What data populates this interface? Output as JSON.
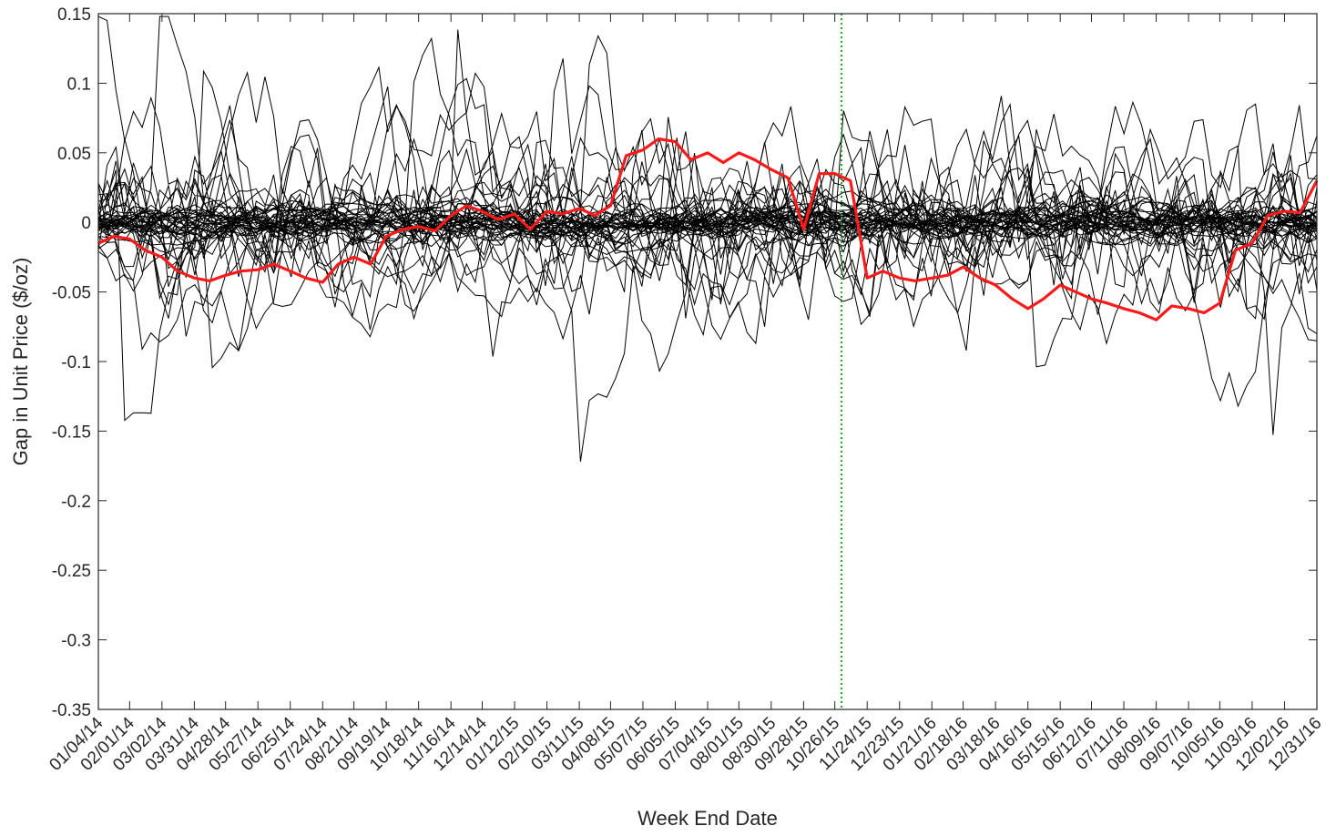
{
  "chart_data": {
    "type": "line",
    "title": "",
    "xlabel": "Week End Date",
    "ylabel": "Gap in Unit Price ($/oz)",
    "ylim": [
      -0.35,
      0.15
    ],
    "yticks": [
      0.15,
      0.1,
      0.05,
      0,
      -0.05,
      -0.1,
      -0.15,
      -0.2,
      -0.25,
      -0.3,
      -0.35
    ],
    "ytick_labels": [
      "0.15",
      "0.1",
      "0.05",
      "0",
      "-0.05",
      "-0.1",
      "-0.15",
      "-0.2",
      "-0.25",
      "-0.3",
      "-0.35"
    ],
    "xtick_labels": [
      "01/04/14",
      "02/01/14",
      "03/02/14",
      "03/31/14",
      "04/28/14",
      "05/27/14",
      "06/25/14",
      "07/24/14",
      "08/21/14",
      "09/19/14",
      "10/18/14",
      "11/16/14",
      "12/14/14",
      "01/12/15",
      "02/10/15",
      "03/11/15",
      "04/08/15",
      "05/07/15",
      "06/05/15",
      "07/04/15",
      "08/01/15",
      "08/30/15",
      "09/28/15",
      "10/26/15",
      "11/24/15",
      "12/23/15",
      "01/21/16",
      "02/18/16",
      "03/18/16",
      "04/16/16",
      "05/15/16",
      "06/12/16",
      "07/11/16",
      "08/09/16",
      "09/07/16",
      "10/05/16",
      "11/03/16",
      "12/02/16",
      "12/31/16"
    ],
    "x_range": [
      "01/04/14",
      "12/31/16"
    ],
    "grid": false,
    "vertical_marker": {
      "date": "11/01/15",
      "color": "#2ca02c",
      "style": "dotted"
    },
    "highlight_series": {
      "color": "#ff1a1a",
      "x": [
        "01/04/14",
        "01/18/14",
        "02/01/14",
        "02/15/14",
        "03/02/14",
        "03/16/14",
        "03/31/14",
        "04/14/14",
        "04/28/14",
        "05/12/14",
        "05/27/14",
        "06/10/14",
        "06/25/14",
        "07/09/14",
        "07/24/14",
        "08/07/14",
        "08/21/14",
        "09/05/14",
        "09/19/14",
        "10/04/14",
        "10/18/14",
        "11/02/14",
        "11/16/14",
        "11/30/14",
        "12/14/14",
        "12/28/14",
        "01/12/15",
        "01/26/15",
        "02/10/15",
        "02/24/15",
        "03/11/15",
        "03/25/15",
        "04/08/15",
        "04/22/15",
        "05/07/15",
        "05/21/15",
        "06/05/15",
        "06/19/15",
        "07/04/15",
        "07/18/15",
        "08/01/15",
        "08/15/15",
        "08/30/15",
        "09/14/15",
        "09/28/15",
        "10/12/15",
        "10/26/15",
        "11/09/15",
        "11/24/15",
        "12/08/15",
        "12/23/15",
        "01/06/16",
        "01/21/16",
        "02/04/16",
        "02/18/16",
        "03/04/16",
        "03/18/16",
        "04/02/16",
        "04/16/16",
        "04/30/16",
        "05/15/16",
        "05/29/16",
        "06/12/16",
        "06/26/16",
        "07/11/16",
        "07/25/16",
        "08/09/16",
        "08/23/16",
        "09/07/16",
        "09/21/16",
        "10/05/16",
        "10/19/16",
        "11/03/16",
        "11/17/16",
        "12/02/16",
        "12/16/16",
        "12/31/16"
      ],
      "y": [
        -0.015,
        -0.01,
        -0.012,
        -0.02,
        -0.025,
        -0.035,
        -0.04,
        -0.042,
        -0.038,
        -0.035,
        -0.034,
        -0.03,
        -0.035,
        -0.04,
        -0.043,
        -0.03,
        -0.025,
        -0.03,
        -0.01,
        -0.005,
        -0.003,
        -0.006,
        0.005,
        0.012,
        0.008,
        0.002,
        0.006,
        -0.005,
        0.008,
        0.006,
        0.01,
        0.005,
        0.012,
        0.048,
        0.052,
        0.06,
        0.058,
        0.045,
        0.05,
        0.043,
        0.05,
        0.045,
        0.038,
        0.032,
        -0.005,
        0.035,
        0.035,
        0.03,
        -0.04,
        -0.035,
        -0.04,
        -0.042,
        -0.04,
        -0.038,
        -0.032,
        -0.04,
        -0.045,
        -0.055,
        -0.062,
        -0.055,
        -0.045,
        -0.05,
        -0.055,
        -0.058,
        -0.062,
        -0.065,
        -0.07,
        -0.06,
        -0.062,
        -0.065,
        -0.058,
        -0.02,
        -0.015,
        0.005,
        0.008,
        0.007,
        0.03
      ]
    },
    "background_series_count": 45,
    "background_series_color": "#000000"
  }
}
